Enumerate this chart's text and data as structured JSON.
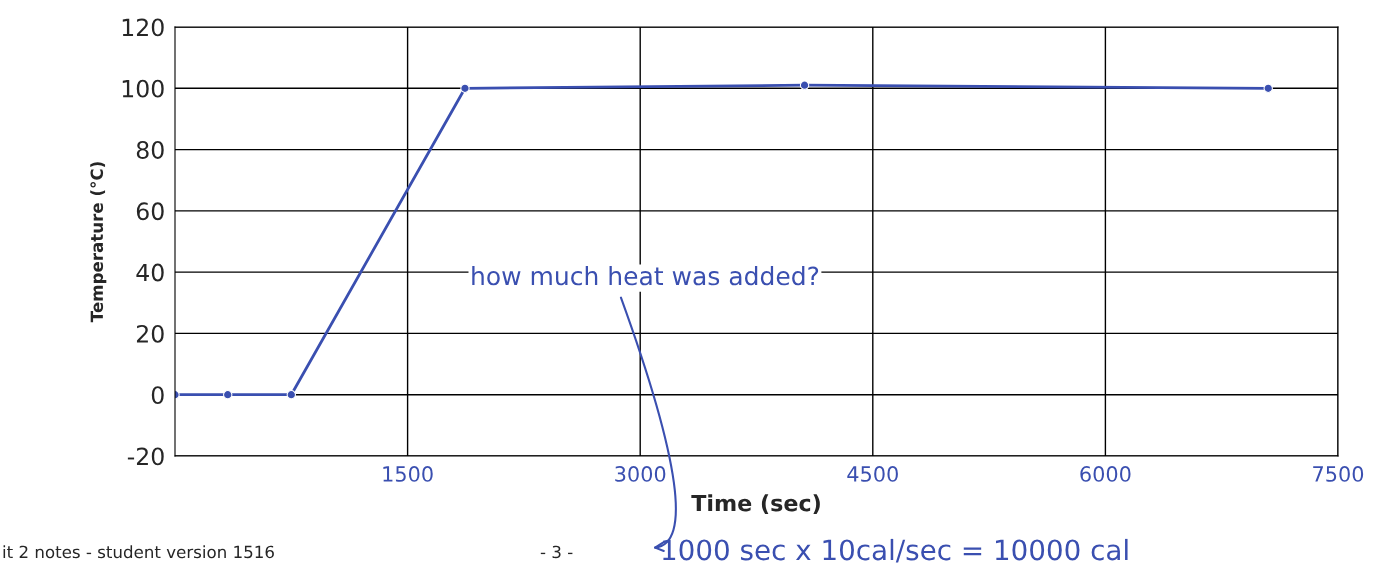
{
  "chart_data": {
    "type": "line",
    "xlabel": "Time (sec)",
    "ylabel": "Temperature (°C)",
    "x": [
      0,
      340,
      750,
      1870,
      4060,
      7050
    ],
    "series": [
      {
        "color": "#3a4fb0",
        "values": [
          0,
          0,
          0,
          100,
          101,
          100
        ]
      }
    ],
    "xlim": [
      0,
      7500
    ],
    "xticks": [
      1500,
      3000,
      4500,
      6000,
      7500
    ],
    "ylim": [
      -20,
      120
    ],
    "yticks": [
      -20,
      0,
      20,
      40,
      60,
      80,
      100,
      120
    ],
    "grid": true,
    "marker": "circle",
    "line_style": "solid",
    "annotations": [
      "how much heat was added?",
      "1000 sec x 10cal/sec = 10000 cal",
      "it 2 notes - student version 1516",
      "- 3 -"
    ]
  }
}
